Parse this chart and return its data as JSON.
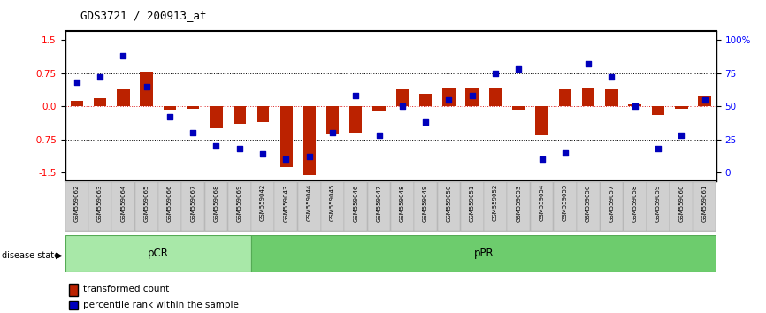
{
  "title": "GDS3721 / 200913_at",
  "samples": [
    "GSM559062",
    "GSM559063",
    "GSM559064",
    "GSM559065",
    "GSM559066",
    "GSM559067",
    "GSM559068",
    "GSM559069",
    "GSM559042",
    "GSM559043",
    "GSM559044",
    "GSM559045",
    "GSM559046",
    "GSM559047",
    "GSM559048",
    "GSM559049",
    "GSM559050",
    "GSM559051",
    "GSM559052",
    "GSM559053",
    "GSM559054",
    "GSM559055",
    "GSM559056",
    "GSM559057",
    "GSM559058",
    "GSM559059",
    "GSM559060",
    "GSM559061"
  ],
  "transformed_count": [
    0.12,
    0.18,
    0.38,
    0.78,
    -0.08,
    -0.05,
    -0.5,
    -0.4,
    -0.35,
    -1.38,
    -1.55,
    -0.62,
    -0.6,
    -0.1,
    0.38,
    0.28,
    0.4,
    0.42,
    0.42,
    -0.08,
    -0.65,
    0.38,
    0.4,
    0.38,
    0.05,
    -0.2,
    -0.05,
    0.22
  ],
  "percentile_rank": [
    68,
    72,
    88,
    65,
    42,
    30,
    20,
    18,
    14,
    10,
    12,
    30,
    58,
    28,
    50,
    38,
    55,
    58,
    75,
    78,
    10,
    15,
    82,
    72,
    50,
    18,
    28,
    55
  ],
  "groups": [
    {
      "label": "pCR",
      "color": "#90ee90",
      "start": 0,
      "end": 8
    },
    {
      "label": "pPR",
      "color": "#6dcc6d",
      "start": 8,
      "end": 28
    }
  ],
  "bar_color": "#bb2200",
  "dot_color": "#0000bb",
  "ylim": [
    -1.7,
    1.7
  ],
  "yticks_left": [
    -1.5,
    -0.75,
    0.0,
    0.75,
    1.5
  ],
  "yticks_right": [
    0,
    25,
    50,
    75,
    100
  ],
  "hline_values": [
    -0.75,
    0.0,
    0.75
  ]
}
